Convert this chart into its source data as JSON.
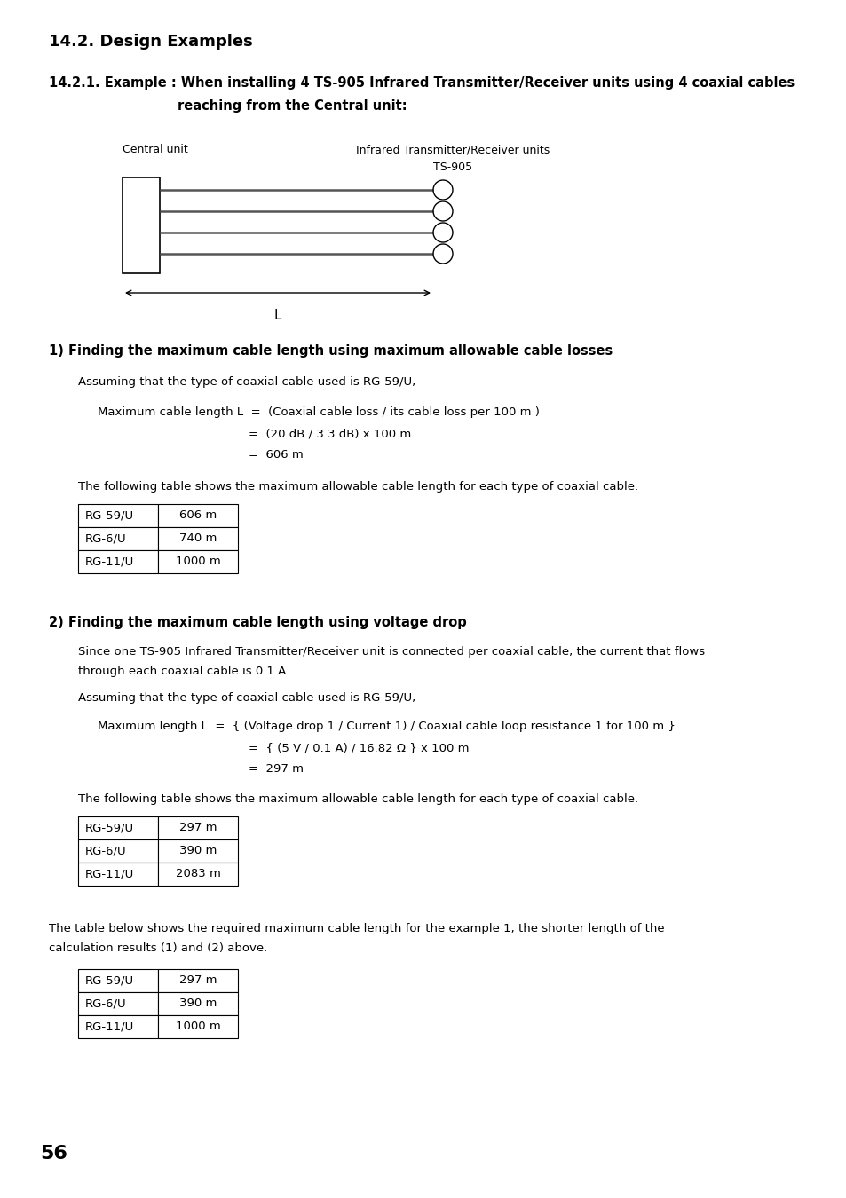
{
  "title_main": "14.2. Design Examples",
  "section_title_line1": "14.2.1. Example : When installing 4 TS-905 Infrared Transmitter/Receiver units using 4 coaxial cables",
  "section_title_line2": "reaching from the Central unit:",
  "diagram_label_left": "Central unit",
  "diagram_label_right_top": "Infrared Transmitter/Receiver units",
  "diagram_label_right_bottom": "TS-905",
  "diagram_L_label": "L",
  "section1_title": "1) Finding the maximum cable length using maximum allowable cable losses",
  "section1_para1": "Assuming that the type of coaxial cable used is RG-59/U,",
  "section1_formula1": "Maximum cable length L  =  (Coaxial cable loss / its cable loss per 100 m )",
  "section1_formula2": "=  (20 dB / 3.3 dB) x 100 m",
  "section1_formula3": "=  606 m",
  "section1_table_intro": "The following table shows the maximum allowable cable length for each type of coaxial cable.",
  "table1": [
    [
      "RG-59/U",
      "606 m"
    ],
    [
      "RG-6/U",
      "740 m"
    ],
    [
      "RG-11/U",
      "1000 m"
    ]
  ],
  "section2_title": "2) Finding the maximum cable length using voltage drop",
  "section2_para1a": "Since one TS-905 Infrared Transmitter/Receiver unit is connected per coaxial cable, the current that flows",
  "section2_para1b": "through each coaxial cable is 0.1 A.",
  "section2_para2": "Assuming that the type of coaxial cable used is RG-59/U,",
  "section2_formula1": "Maximum length L  =  { (Voltage drop 1 / Current 1) / Coaxial cable loop resistance 1 for 100 m }",
  "section2_formula2": "=  { (5 V / 0.1 A) / 16.82 Ω } x 100 m",
  "section2_formula3": "=  297 m",
  "section2_table_intro": "The following table shows the maximum allowable cable length for each type of coaxial cable.",
  "table2": [
    [
      "RG-59/U",
      "297 m"
    ],
    [
      "RG-6/U",
      "390 m"
    ],
    [
      "RG-11/U",
      "2083 m"
    ]
  ],
  "section3_para1": "The table below shows the required maximum cable length for the example 1, the shorter length of the",
  "section3_para2": "calculation results (1) and (2) above.",
  "table3": [
    [
      "RG-59/U",
      "297 m"
    ],
    [
      "RG-6/U",
      "390 m"
    ],
    [
      "RG-11/U",
      "1000 m"
    ]
  ],
  "page_number": "56",
  "bg_color": "#ffffff",
  "text_color": "#000000"
}
